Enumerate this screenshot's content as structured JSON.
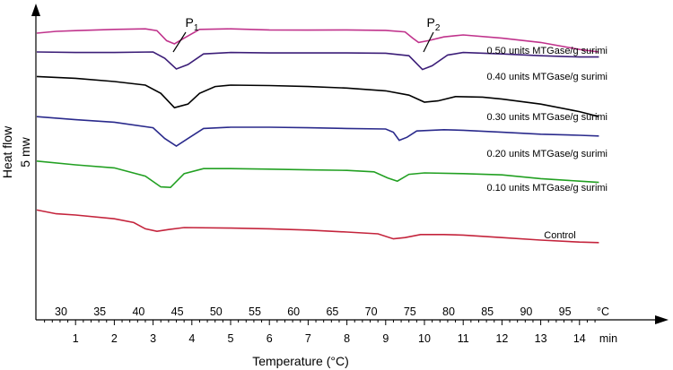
{
  "chart_data": {
    "type": "line",
    "xlabel": "Temperature (°C)",
    "ylabel": "Heat flow",
    "scale_label": "5 mw",
    "time_axis": {
      "unit": "min",
      "ticks": [
        "1",
        "2",
        "3",
        "4",
        "5",
        "6",
        "7",
        "8",
        "9",
        "10",
        "11",
        "12",
        "13",
        "14"
      ]
    },
    "temp_axis": {
      "unit": "°C",
      "ticks": [
        "30",
        "35",
        "40",
        "45",
        "50",
        "55",
        "60",
        "65",
        "70",
        "75",
        "80",
        "85",
        "90",
        "95"
      ]
    },
    "peaks": [
      {
        "label": "P",
        "sub": "1",
        "x_min": 3.55
      },
      {
        "label": "P",
        "sub": "2",
        "x_min": 9.95
      }
    ],
    "series": [
      {
        "name": "0.50 units MTGase/g surimi",
        "color": "#c0338c",
        "points": [
          [
            0,
            8.75
          ],
          [
            0.5,
            8.82
          ],
          [
            1,
            8.85
          ],
          [
            2,
            8.9
          ],
          [
            2.8,
            8.92
          ],
          [
            3.1,
            8.85
          ],
          [
            3.35,
            8.45
          ],
          [
            3.55,
            8.32
          ],
          [
            3.8,
            8.55
          ],
          [
            4.2,
            8.9
          ],
          [
            5,
            8.92
          ],
          [
            6,
            8.88
          ],
          [
            7,
            8.87
          ],
          [
            8,
            8.88
          ],
          [
            9,
            8.86
          ],
          [
            9.5,
            8.8
          ],
          [
            9.7,
            8.55
          ],
          [
            9.85,
            8.38
          ],
          [
            10.1,
            8.45
          ],
          [
            10.5,
            8.6
          ],
          [
            11,
            8.68
          ],
          [
            12,
            8.55
          ],
          [
            13,
            8.38
          ],
          [
            14,
            8.1
          ],
          [
            14.5,
            8.0
          ]
        ]
      },
      {
        "name": "0.40 units MTGase/g surimi",
        "color": "#3c1e78",
        "points": [
          [
            0,
            8.0
          ],
          [
            1,
            7.98
          ],
          [
            2,
            7.98
          ],
          [
            3,
            8.0
          ],
          [
            3.3,
            7.75
          ],
          [
            3.6,
            7.32
          ],
          [
            3.9,
            7.5
          ],
          [
            4.3,
            7.92
          ],
          [
            5,
            7.98
          ],
          [
            6,
            7.96
          ],
          [
            7,
            7.96
          ],
          [
            8,
            7.96
          ],
          [
            9,
            7.95
          ],
          [
            9.6,
            7.85
          ],
          [
            9.95,
            7.3
          ],
          [
            10.2,
            7.45
          ],
          [
            10.6,
            7.88
          ],
          [
            11,
            7.98
          ],
          [
            12,
            7.92
          ],
          [
            13,
            7.85
          ],
          [
            14,
            7.8
          ],
          [
            14.5,
            7.8
          ]
        ]
      },
      {
        "name": "0.30 units MTGase/g surimi",
        "color": "#000000",
        "points": [
          [
            0,
            7.02
          ],
          [
            1,
            6.95
          ],
          [
            2,
            6.82
          ],
          [
            2.8,
            6.68
          ],
          [
            3.2,
            6.35
          ],
          [
            3.55,
            5.78
          ],
          [
            3.9,
            5.92
          ],
          [
            4.2,
            6.35
          ],
          [
            4.6,
            6.62
          ],
          [
            5,
            6.68
          ],
          [
            6,
            6.66
          ],
          [
            7,
            6.62
          ],
          [
            8,
            6.56
          ],
          [
            9,
            6.45
          ],
          [
            9.6,
            6.28
          ],
          [
            10,
            6.0
          ],
          [
            10.35,
            6.05
          ],
          [
            10.8,
            6.22
          ],
          [
            11.5,
            6.2
          ],
          [
            12,
            6.12
          ],
          [
            13,
            5.92
          ],
          [
            14,
            5.62
          ],
          [
            14.5,
            5.42
          ]
        ]
      },
      {
        "name": "0.20 units MTGase/g surimi",
        "color": "#2a2a8c",
        "points": [
          [
            0,
            5.42
          ],
          [
            1,
            5.3
          ],
          [
            2,
            5.2
          ],
          [
            3,
            4.98
          ],
          [
            3.3,
            4.55
          ],
          [
            3.6,
            4.25
          ],
          [
            3.9,
            4.55
          ],
          [
            4.3,
            4.95
          ],
          [
            5,
            5.0
          ],
          [
            6,
            5.0
          ],
          [
            7,
            4.98
          ],
          [
            8,
            4.95
          ],
          [
            9,
            4.93
          ],
          [
            9.2,
            4.8
          ],
          [
            9.35,
            4.48
          ],
          [
            9.55,
            4.6
          ],
          [
            9.8,
            4.85
          ],
          [
            10.5,
            4.9
          ],
          [
            11,
            4.88
          ],
          [
            12,
            4.8
          ],
          [
            13,
            4.72
          ],
          [
            14,
            4.68
          ],
          [
            14.5,
            4.65
          ]
        ]
      },
      {
        "name": "0.10 units MTGase/g surimi",
        "color": "#22a022",
        "points": [
          [
            0,
            3.65
          ],
          [
            1,
            3.5
          ],
          [
            2,
            3.38
          ],
          [
            2.8,
            3.05
          ],
          [
            3.2,
            2.62
          ],
          [
            3.45,
            2.6
          ],
          [
            3.8,
            3.15
          ],
          [
            4.3,
            3.35
          ],
          [
            5,
            3.35
          ],
          [
            6,
            3.33
          ],
          [
            7,
            3.3
          ],
          [
            8,
            3.28
          ],
          [
            8.7,
            3.22
          ],
          [
            9.05,
            2.98
          ],
          [
            9.3,
            2.85
          ],
          [
            9.6,
            3.12
          ],
          [
            10,
            3.18
          ],
          [
            11,
            3.15
          ],
          [
            12,
            3.1
          ],
          [
            13,
            2.95
          ],
          [
            14,
            2.85
          ],
          [
            14.5,
            2.8
          ]
        ]
      },
      {
        "name": "Control",
        "color": "#c4243c",
        "points": [
          [
            0,
            1.7
          ],
          [
            0.5,
            1.55
          ],
          [
            1,
            1.5
          ],
          [
            2,
            1.35
          ],
          [
            2.5,
            1.2
          ],
          [
            2.8,
            0.95
          ],
          [
            3.1,
            0.85
          ],
          [
            3.4,
            0.92
          ],
          [
            3.8,
            1.0
          ],
          [
            5,
            0.98
          ],
          [
            6,
            0.95
          ],
          [
            7,
            0.9
          ],
          [
            8,
            0.82
          ],
          [
            8.8,
            0.75
          ],
          [
            9.2,
            0.55
          ],
          [
            9.5,
            0.6
          ],
          [
            9.9,
            0.72
          ],
          [
            10.5,
            0.72
          ],
          [
            11,
            0.7
          ],
          [
            12,
            0.6
          ],
          [
            13,
            0.5
          ],
          [
            14,
            0.42
          ],
          [
            14.5,
            0.4
          ]
        ]
      }
    ]
  }
}
